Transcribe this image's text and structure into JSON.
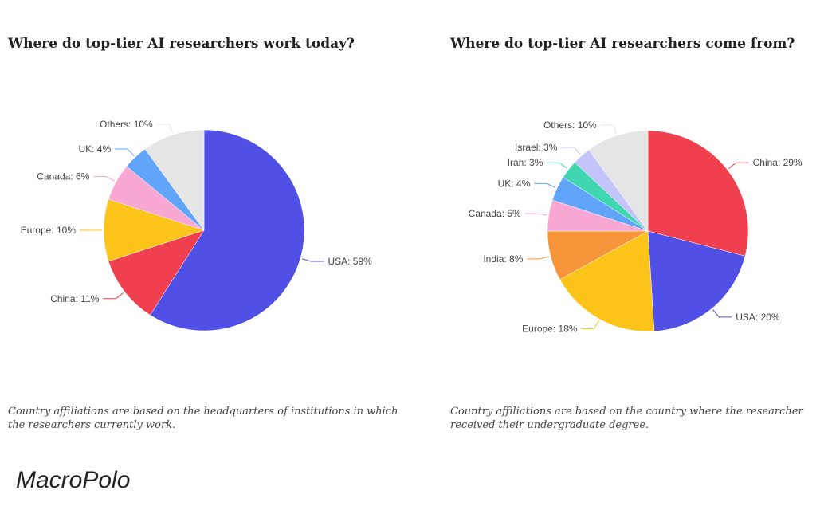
{
  "source": "MacroPolo",
  "chart_data": [
    {
      "type": "pie",
      "title": "Where do top-tier AI researchers work today?",
      "note": "Country affiliations are based on the headquarters of institutions in which the researchers currently work.",
      "slices": [
        {
          "name": "USA",
          "value": 59,
          "label": "USA: 59%",
          "color": "#5050e6"
        },
        {
          "name": "China",
          "value": 11,
          "label": "China: 11%",
          "color": "#f0404f"
        },
        {
          "name": "Europe",
          "value": 10,
          "label": "Europe: 10%",
          "color": "#fcc419"
        },
        {
          "name": "Canada",
          "value": 6,
          "label": "Canada: 6%",
          "color": "#f9a8d4"
        },
        {
          "name": "UK",
          "value": 4,
          "label": "UK: 4%",
          "color": "#60a5fa"
        },
        {
          "name": "Others",
          "value": 10,
          "label": "Others: 10%",
          "color": "#e5e5e5"
        }
      ]
    },
    {
      "type": "pie",
      "title": "Where do top-tier AI researchers come from?",
      "note": "Country affiliations are based on the country where the researcher received their undergraduate degree.",
      "slices": [
        {
          "name": "China",
          "value": 29,
          "label": "China: 29%",
          "color": "#f0404f"
        },
        {
          "name": "USA",
          "value": 20,
          "label": "USA: 20%",
          "color": "#5050e6"
        },
        {
          "name": "Europe",
          "value": 18,
          "label": "Europe: 18%",
          "color": "#fcc419"
        },
        {
          "name": "India",
          "value": 8,
          "label": "India: 8%",
          "color": "#f7953b"
        },
        {
          "name": "Canada",
          "value": 5,
          "label": "Canada: 5%",
          "color": "#f9a8d4"
        },
        {
          "name": "UK",
          "value": 4,
          "label": "UK: 4%",
          "color": "#60a5fa"
        },
        {
          "name": "Iran",
          "value": 3,
          "label": "Iran: 3%",
          "color": "#40d6b0"
        },
        {
          "name": "Israel",
          "value": 3,
          "label": "Israel: 3%",
          "color": "#c2c4fa"
        },
        {
          "name": "Others",
          "value": 10,
          "label": "Others: 10%",
          "color": "#e5e5e5"
        }
      ]
    }
  ]
}
